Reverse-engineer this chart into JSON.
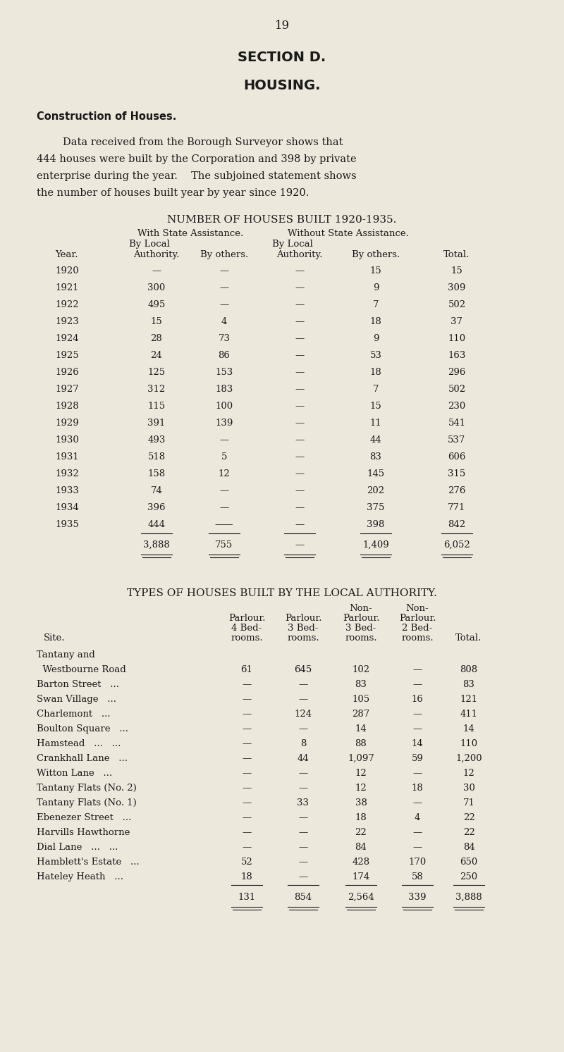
{
  "page_number": "19",
  "section_title": "SECTION D.",
  "housing_title": "HOUSING.",
  "construction_heading": "Construction of Houses.",
  "intro_lines": [
    "        Data received from the Borough Surveyor shows that",
    "444 houses were built by the Corporation and 398 by private",
    "enterprise during the year.  The subjoined statement shows",
    "the number of houses built year by year since 1920."
  ],
  "table1_title": "NUMBER OF HOUSES BUILT 1920-1935.",
  "table1_header1": "With State Assistance.",
  "table1_header2": "Without State Assistance.",
  "table1_subheader1": "By Local",
  "table1_subheader2": "By Local",
  "table1_col_labels": [
    "Year.",
    "Authority.",
    "By others.",
    "Authority.",
    "By others.",
    "Total."
  ],
  "table1_rows": [
    [
      "1920",
      "—",
      "—",
      "—",
      "15",
      "15"
    ],
    [
      "1921",
      "300",
      "—",
      "—",
      "9",
      "309"
    ],
    [
      "1922",
      "495",
      "—",
      "—",
      "7",
      "502"
    ],
    [
      "1923",
      "15",
      "4",
      "—",
      "18",
      "37"
    ],
    [
      "1924",
      "28",
      "73",
      "—",
      "9",
      "110"
    ],
    [
      "1925",
      "24",
      "86",
      "—",
      "53",
      "163"
    ],
    [
      "1926",
      "125",
      "153",
      "—",
      "18",
      "296"
    ],
    [
      "1927",
      "312",
      "183",
      "—",
      "7",
      "502"
    ],
    [
      "1928",
      "115",
      "100",
      "—",
      "15",
      "230"
    ],
    [
      "1929",
      "391",
      "139",
      "—",
      "11",
      "541"
    ],
    [
      "1930",
      "493",
      "—",
      "—",
      "44",
      "537"
    ],
    [
      "1931",
      "518",
      "5",
      "—",
      "83",
      "606"
    ],
    [
      "1932",
      "158",
      "12",
      "—",
      "145",
      "315"
    ],
    [
      "1933",
      "74",
      "—",
      "—",
      "202",
      "276"
    ],
    [
      "1934",
      "396",
      "—",
      "—",
      "375",
      "771"
    ],
    [
      "1935",
      "444",
      "——",
      "—",
      "398",
      "842"
    ]
  ],
  "table1_totals": [
    "",
    "3,888",
    "755",
    "—",
    "1,409",
    "6,052"
  ],
  "table2_title": "TYPES OF HOUSES BUILT BY THE LOCAL AUTHORITY.",
  "table2_rows": [
    [
      "Tantany and",
      "",
      "",
      "",
      "",
      ""
    ],
    [
      "  Westbourne Road",
      "61",
      "645",
      "102",
      "—",
      "808"
    ],
    [
      "Barton Street   ...",
      "—",
      "—",
      "83",
      "—",
      "83"
    ],
    [
      "Swan Village   ...",
      "—",
      "—",
      "105",
      "16",
      "121"
    ],
    [
      "Charlemont   ...",
      "—",
      "124",
      "287",
      "—",
      "411"
    ],
    [
      "Boulton Square   ...",
      "—",
      "—",
      "14",
      "—",
      "14"
    ],
    [
      "Hamstead   ...   ...",
      "—",
      "8",
      "88",
      "14",
      "110"
    ],
    [
      "Crankhall Lane   ...",
      "—",
      "44",
      "1,097",
      "59",
      "1,200"
    ],
    [
      "Witton Lane   ...",
      "—",
      "—",
      "12",
      "—",
      "12"
    ],
    [
      "Tantany Flats (No. 2)",
      "—",
      "—",
      "12",
      "18",
      "30"
    ],
    [
      "Tantany Flats (No. 1)",
      "—",
      "33",
      "38",
      "—",
      "71"
    ],
    [
      "Ebenezer Street   ...",
      "—",
      "—",
      "18",
      "4",
      "22"
    ],
    [
      "Harvills Hawthorne",
      "—",
      "—",
      "22",
      "—",
      "22"
    ],
    [
      "Dial Lane   ...   ...",
      "—",
      "—",
      "84",
      "—",
      "84"
    ],
    [
      "Hamblett's Estate   ...",
      "52",
      "—",
      "428",
      "170",
      "650"
    ],
    [
      "Hateley Heath   ...",
      "18",
      "—",
      "174",
      "58",
      "250"
    ]
  ],
  "table2_totals": [
    "",
    "131",
    "854",
    "2,564",
    "339",
    "3,888"
  ],
  "bg_color": "#EDE8DC",
  "text_color": "#1a1a1a"
}
